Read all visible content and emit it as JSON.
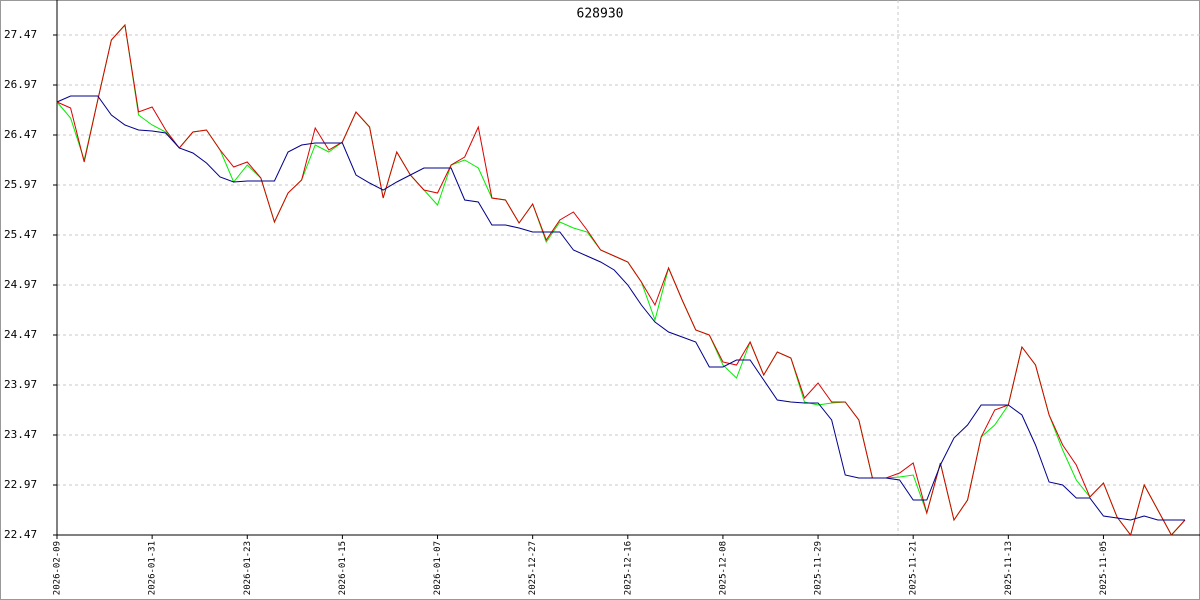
{
  "chart_data": {
    "type": "line",
    "title": "628930",
    "categories": [
      "2026-02-09",
      null,
      null,
      null,
      null,
      null,
      null,
      "2026-01-31",
      null,
      null,
      null,
      null,
      null,
      null,
      "2026-01-23",
      null,
      null,
      null,
      null,
      null,
      null,
      "2026-01-15",
      null,
      null,
      null,
      null,
      null,
      null,
      "2026-01-07",
      null,
      null,
      null,
      null,
      null,
      null,
      "2025-12-27",
      null,
      null,
      null,
      null,
      null,
      null,
      "2025-12-16",
      null,
      null,
      null,
      null,
      null,
      null,
      "2025-12-08",
      null,
      null,
      null,
      null,
      null,
      null,
      "2025-11-29",
      null,
      null,
      null,
      null,
      null,
      null,
      "2025-11-21",
      null,
      null,
      null,
      null,
      null,
      null,
      "2025-11-13",
      null,
      null,
      null,
      null,
      null,
      null,
      "2025-11-05",
      null,
      null,
      null,
      null,
      null,
      null
    ],
    "series": [
      {
        "color": "#00ee00",
        "values": [
          26.8,
          26.64,
          26.22,
          26.82,
          27.42,
          27.57,
          26.67,
          26.57,
          26.5,
          26.34,
          26.5,
          26.52,
          26.32,
          26.0,
          26.17,
          26.04,
          25.6,
          25.89,
          26.02,
          26.37,
          26.3,
          26.4,
          26.7,
          26.55,
          25.84,
          26.3,
          26.07,
          25.92,
          25.77,
          26.17,
          26.22,
          26.14,
          25.84,
          25.82,
          25.59,
          25.78,
          25.4,
          25.6,
          25.54,
          25.5,
          25.32,
          25.26,
          25.2,
          25.0,
          24.62,
          25.14,
          24.82,
          24.52,
          24.47,
          24.17,
          24.04,
          24.4,
          24.07,
          24.3,
          24.24,
          23.8,
          23.77,
          23.79,
          23.8,
          23.62,
          23.04,
          23.04,
          23.05,
          23.07,
          22.69,
          23.19,
          22.62,
          22.82,
          23.45,
          23.57,
          23.77,
          24.35,
          24.17,
          23.67,
          23.32,
          23.02,
          22.85,
          22.99,
          22.65,
          22.47,
          22.97,
          22.72,
          22.47,
          22.62
        ]
      },
      {
        "color": "#dd0000",
        "values": [
          26.8,
          26.74,
          26.2,
          26.82,
          27.42,
          27.57,
          26.7,
          26.75,
          26.52,
          26.34,
          26.5,
          26.52,
          26.32,
          26.15,
          26.2,
          26.04,
          25.6,
          25.89,
          26.02,
          26.54,
          26.32,
          26.4,
          26.7,
          26.55,
          25.84,
          26.3,
          26.07,
          25.92,
          25.89,
          26.17,
          26.25,
          26.55,
          25.84,
          25.82,
          25.59,
          25.78,
          25.42,
          25.62,
          25.7,
          25.52,
          25.32,
          25.26,
          25.2,
          25.0,
          24.77,
          25.14,
          24.82,
          24.52,
          24.47,
          24.2,
          24.17,
          24.4,
          24.07,
          24.3,
          24.24,
          23.84,
          23.99,
          23.8,
          23.8,
          23.62,
          23.04,
          23.04,
          23.09,
          23.19,
          22.69,
          23.19,
          22.62,
          22.82,
          23.45,
          23.72,
          23.77,
          24.35,
          24.17,
          23.67,
          23.37,
          23.17,
          22.85,
          22.99,
          22.65,
          22.47,
          22.97,
          22.72,
          22.47,
          22.62
        ]
      },
      {
        "color": "#00008b",
        "values": [
          26.8,
          26.86,
          26.86,
          26.86,
          26.67,
          26.57,
          26.52,
          26.51,
          26.49,
          26.34,
          26.29,
          26.19,
          26.05,
          26.0,
          26.01,
          26.01,
          26.01,
          26.3,
          26.37,
          26.39,
          26.39,
          26.39,
          26.07,
          25.99,
          25.92,
          26.0,
          26.07,
          26.14,
          26.14,
          26.14,
          25.82,
          25.8,
          25.57,
          25.57,
          25.54,
          25.5,
          25.5,
          25.5,
          25.32,
          25.26,
          25.2,
          25.12,
          24.97,
          24.77,
          24.6,
          24.5,
          24.45,
          24.4,
          24.15,
          24.15,
          24.22,
          24.22,
          24.02,
          23.82,
          23.8,
          23.79,
          23.79,
          23.62,
          23.07,
          23.04,
          23.04,
          23.04,
          23.02,
          22.82,
          22.82,
          23.17,
          23.44,
          23.57,
          23.77,
          23.77,
          23.77,
          23.67,
          23.37,
          23.0,
          22.97,
          22.84,
          22.84,
          22.66,
          22.64,
          22.62,
          22.66,
          22.62,
          22.62,
          22.62
        ]
      }
    ],
    "ylim": [
      22.47,
      27.82
    ],
    "yticks": [
      22.47,
      22.97,
      23.47,
      23.97,
      24.47,
      24.97,
      25.47,
      25.97,
      26.47,
      26.97,
      27.47
    ],
    "grid": true
  }
}
